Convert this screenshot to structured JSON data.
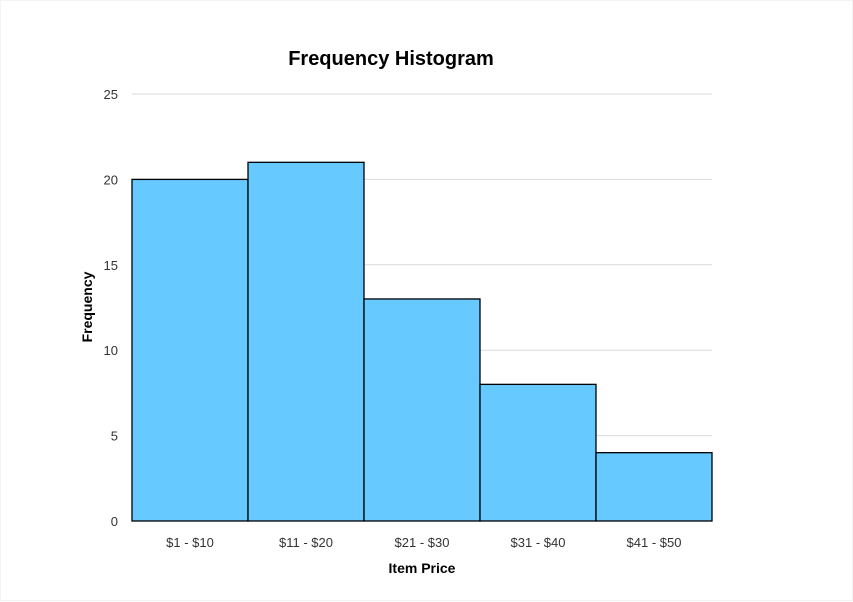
{
  "chart_data": {
    "type": "bar",
    "title": "Frequency Histogram",
    "xlabel": "Item Price",
    "ylabel": "Frequency",
    "categories": [
      "$1 - $10",
      "$11 - $20",
      "$21 - $30",
      "$31 - $40",
      "$41 - $50"
    ],
    "values": [
      20,
      21,
      13,
      8,
      4
    ],
    "ylim": [
      0,
      25
    ],
    "yticks": [
      0,
      5,
      10,
      15,
      20,
      25
    ],
    "grid": true,
    "legend": "none",
    "colors": {
      "bar_fill": "#66c9ff",
      "bar_edge": "#000000"
    }
  }
}
